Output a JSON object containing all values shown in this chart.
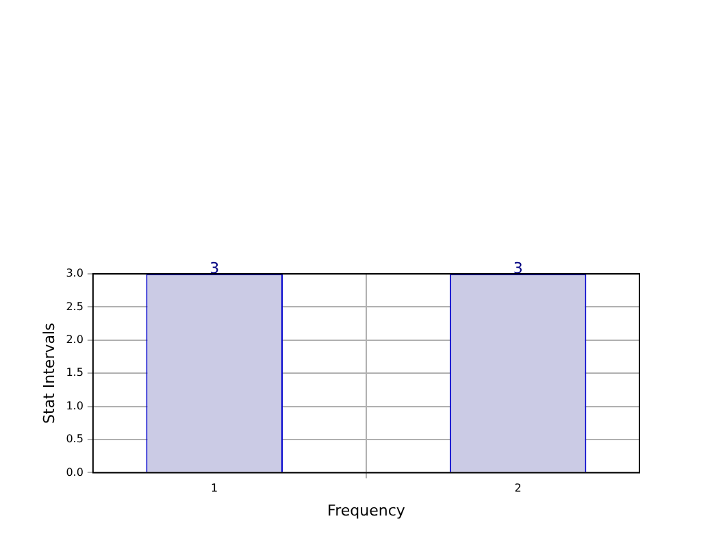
{
  "chart_data": {
    "type": "bar",
    "x": [
      1,
      2
    ],
    "values": [
      3,
      3
    ],
    "color": "#cbcbe5",
    "xlim": [
      0.6,
      2.4
    ],
    "xticks": [
      1,
      2
    ],
    "ylim": [
      0,
      3
    ],
    "yticks": [
      {
        "value": 0,
        "label": "0.0"
      },
      {
        "value": 0.5,
        "label": "0.5"
      },
      {
        "value": 1,
        "label": "1.0"
      },
      {
        "value": 1.5,
        "label": "1.5"
      },
      {
        "value": 2,
        "label": "2.0"
      },
      {
        "value": 2.5,
        "label": "2.5"
      },
      {
        "value": 3,
        "label": "3.0"
      }
    ],
    "xlabel": "Frequency",
    "ylabel": "Stat Intervals",
    "grid": true,
    "data_labels": true
  }
}
